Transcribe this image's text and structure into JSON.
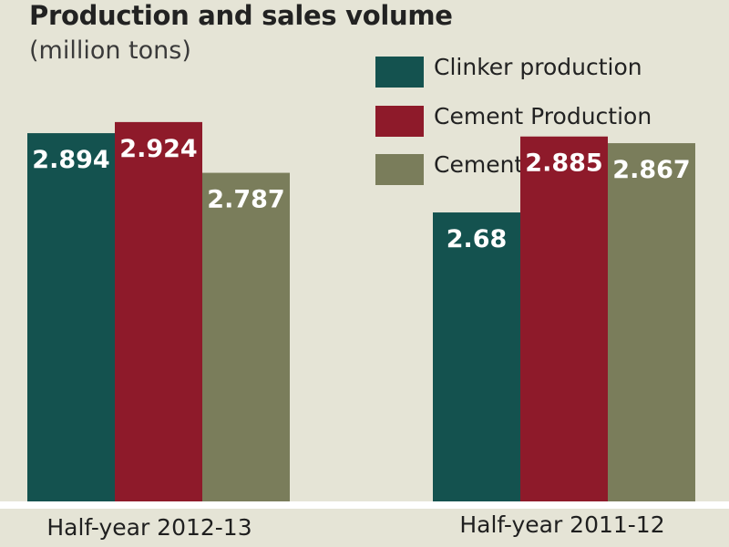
{
  "chart_data": {
    "type": "bar",
    "title": "Production and sales volume",
    "subtitle": "(million tons)",
    "categories": [
      "Half-year 2012-13",
      "Half-year 2011-12"
    ],
    "series": [
      {
        "name": "Clinker production",
        "color": "#14524f",
        "values": [
          2.894,
          2.68
        ],
        "labels": [
          "2.894",
          "2.68"
        ]
      },
      {
        "name": "Cement Production",
        "color": "#8e1a2a",
        "values": [
          2.924,
          2.885
        ],
        "labels": [
          "2.924",
          "2.885"
        ]
      },
      {
        "name": "Cement Despatches",
        "color": "#7a7d5b",
        "values": [
          2.787,
          2.867
        ],
        "labels": [
          "2.787",
          "2.867"
        ]
      }
    ],
    "ylim": [
      1.9,
      3.0
    ],
    "grid": false,
    "legend": "top-right"
  }
}
